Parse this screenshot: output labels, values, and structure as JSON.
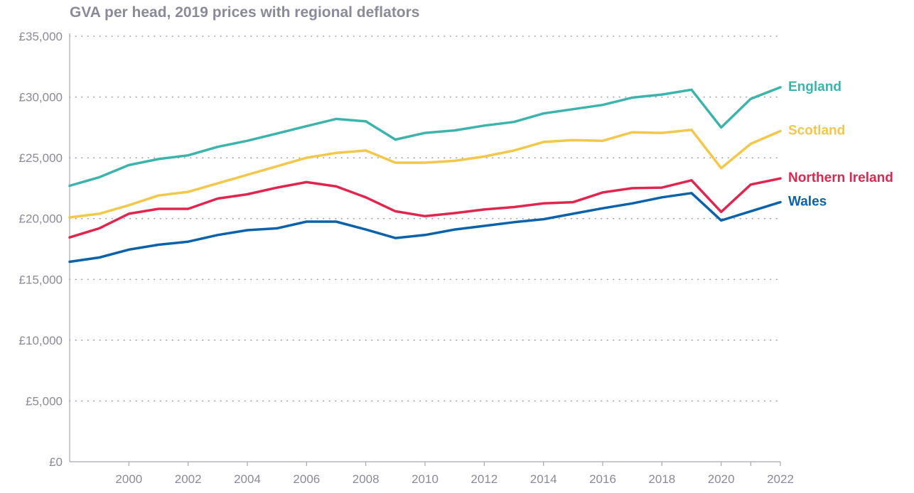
{
  "chart_data": {
    "type": "line",
    "title": "GVA per head, 2019 prices with regional deflators",
    "xlabel": "",
    "ylabel": "",
    "xlim": [
      1998,
      2022
    ],
    "ylim": [
      0,
      35000
    ],
    "x_ticks": [
      2000,
      2002,
      2004,
      2006,
      2008,
      2010,
      2012,
      2014,
      2016,
      2018,
      2020,
      2022
    ],
    "y_ticks": [
      0,
      5000,
      10000,
      15000,
      20000,
      25000,
      30000,
      35000
    ],
    "y_tick_labels": [
      "£0",
      "£5,000",
      "£10,000",
      "£15,000",
      "£20,000",
      "£25,000",
      "£30,000",
      "£35,000"
    ],
    "grid": "horizontal dotted",
    "x": [
      1998,
      1999,
      2000,
      2001,
      2002,
      2003,
      2004,
      2005,
      2006,
      2007,
      2008,
      2009,
      2010,
      2011,
      2012,
      2013,
      2014,
      2015,
      2016,
      2017,
      2018,
      2019,
      2020,
      2021,
      2022
    ],
    "series": [
      {
        "name": "England",
        "color": "#3cb4ac",
        "values": [
          22700,
          23400,
          24400,
          24900,
          25200,
          25900,
          26400,
          27000,
          27600,
          28200,
          28000,
          26500,
          27050,
          27250,
          27650,
          27950,
          28650,
          29000,
          29350,
          29950,
          30200,
          30600,
          27500,
          29850,
          30800
        ]
      },
      {
        "name": "Scotland",
        "color": "#f2c84b",
        "values": [
          20100,
          20400,
          21100,
          21900,
          22200,
          22900,
          23600,
          24300,
          25000,
          25400,
          25600,
          24600,
          24600,
          24750,
          25100,
          25600,
          26300,
          26450,
          26400,
          27100,
          27050,
          27300,
          24150,
          26150,
          27200
        ]
      },
      {
        "name": "Northern Ireland",
        "color": "#e0264f",
        "values": [
          18450,
          19200,
          20400,
          20800,
          20800,
          21650,
          22000,
          22550,
          23000,
          22650,
          21750,
          20600,
          20200,
          20450,
          20750,
          20950,
          21250,
          21350,
          22150,
          22500,
          22550,
          23150,
          20550,
          22800,
          23300
        ]
      },
      {
        "name": "Wales",
        "color": "#0a62aa",
        "values": [
          16450,
          16800,
          17450,
          17850,
          18100,
          18650,
          19050,
          19200,
          19750,
          19750,
          19100,
          18400,
          18650,
          19100,
          19400,
          19700,
          19950,
          20400,
          20850,
          21250,
          21750,
          22100,
          19850,
          20600,
          21350
        ]
      }
    ]
  }
}
